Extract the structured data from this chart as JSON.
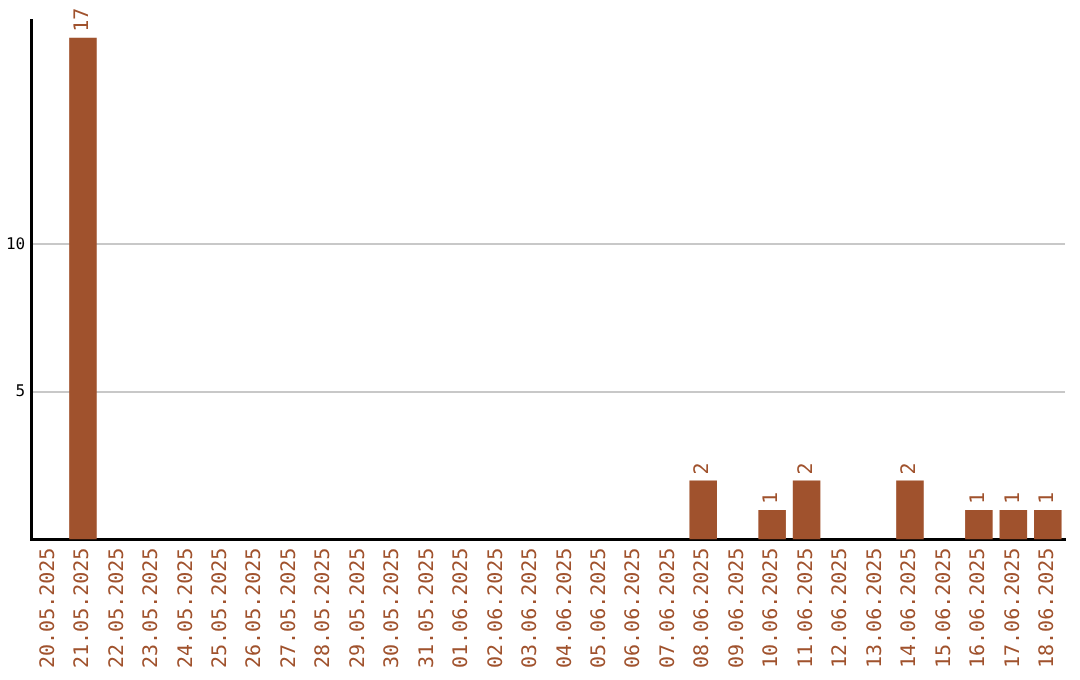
{
  "chart_data": {
    "type": "bar",
    "categories": [
      "20.05.2025",
      "21.05.2025",
      "22.05.2025",
      "23.05.2025",
      "24.05.2025",
      "25.05.2025",
      "26.05.2025",
      "27.05.2025",
      "28.05.2025",
      "29.05.2025",
      "30.05.2025",
      "31.05.2025",
      "01.06.2025",
      "02.06.2025",
      "03.06.2025",
      "04.06.2025",
      "05.06.2025",
      "06.06.2025",
      "07.06.2025",
      "08.06.2025",
      "09.06.2025",
      "10.06.2025",
      "11.06.2025",
      "12.06.2025",
      "13.06.2025",
      "14.06.2025",
      "15.06.2025",
      "16.06.2025",
      "17.06.2025",
      "18.06.2025"
    ],
    "values": [
      0,
      17,
      0,
      0,
      0,
      0,
      0,
      0,
      0,
      0,
      0,
      0,
      0,
      0,
      0,
      0,
      0,
      0,
      0,
      2,
      0,
      1,
      2,
      0,
      0,
      2,
      0,
      1,
      1,
      1
    ],
    "value_labels": [
      null,
      "17",
      null,
      null,
      null,
      null,
      null,
      null,
      null,
      null,
      null,
      null,
      null,
      null,
      null,
      null,
      null,
      null,
      null,
      "2",
      null,
      "1",
      "2",
      null,
      null,
      "2",
      null,
      "1",
      "1",
      "1"
    ],
    "color": "#a0522d",
    "ylim": [
      0,
      17.6
    ],
    "yticks": [
      5,
      10
    ],
    "grid": "y",
    "legend": false
  }
}
